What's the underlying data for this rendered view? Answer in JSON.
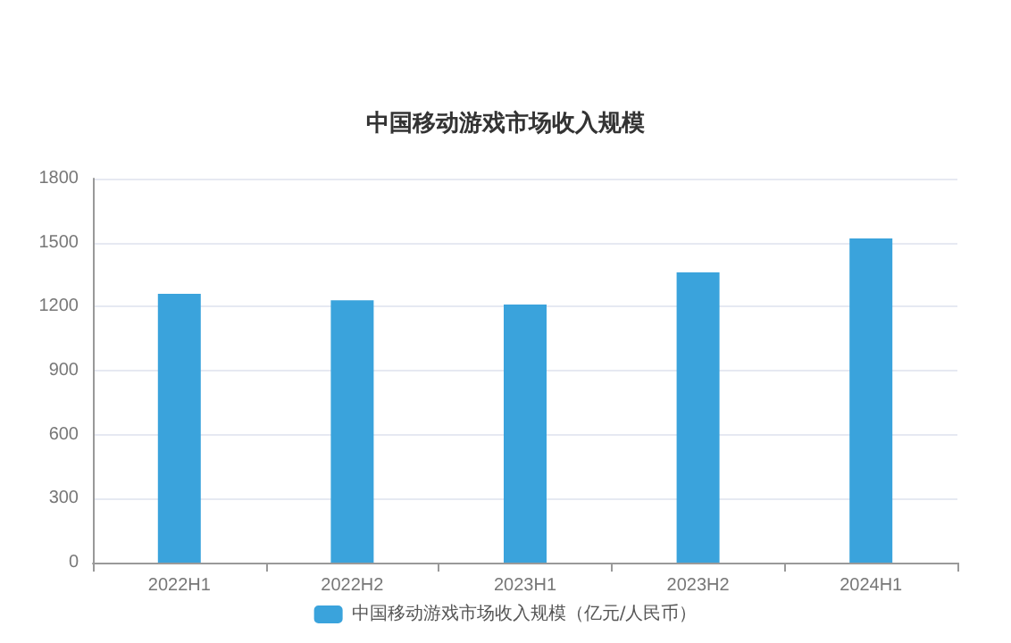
{
  "chart_data": {
    "type": "bar",
    "title": "中国移动游戏市场收入规模",
    "categories": [
      "2022H1",
      "2022H2",
      "2023H1",
      "2023H2",
      "2024H1"
    ],
    "series": [
      {
        "name": "中国移动游戏市场收入规模（亿元/人民币）",
        "color": "#3aa3dc",
        "values": [
          1260,
          1230,
          1210,
          1360,
          1520
        ]
      }
    ],
    "ylim": [
      0,
      1800
    ],
    "yticks": [
      0,
      300,
      600,
      900,
      1200,
      1500,
      1800
    ],
    "grid": "y",
    "legend": "bottom"
  }
}
